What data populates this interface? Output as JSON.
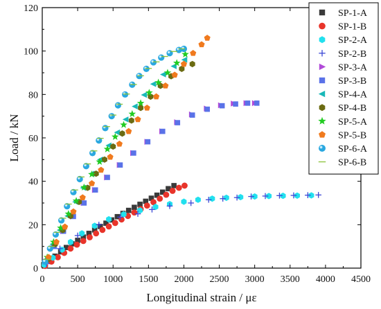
{
  "chart_data": {
    "type": "scatter",
    "title": "",
    "xlabel": "Longitudinal strain / με",
    "ylabel": "Load / kN",
    "xlim": [
      0,
      4500
    ],
    "ylim": [
      0,
      120
    ],
    "xticks": [
      0,
      500,
      1000,
      1500,
      2000,
      2500,
      3000,
      3500,
      4000,
      4500
    ],
    "yticks": [
      0,
      20,
      40,
      60,
      80,
      100,
      120
    ],
    "grid": false,
    "legend_position": "top-right",
    "series": [
      {
        "name": "SP-1-A",
        "marker": "square",
        "color": "#3a3a3a",
        "x": [
          20,
          90,
          180,
          260,
          340,
          420,
          500,
          580,
          660,
          740,
          820,
          900,
          980,
          1060,
          1140,
          1220,
          1300,
          1380,
          1460,
          1540,
          1620,
          1700,
          1780,
          1860
        ],
        "y": [
          1.5,
          3.5,
          5.5,
          7.5,
          9.5,
          11.2,
          12.8,
          14.3,
          16.0,
          17.6,
          19.2,
          20.7,
          22.2,
          23.7,
          25.2,
          26.6,
          28.0,
          29.4,
          30.8,
          32.2,
          33.6,
          35.0,
          36.6,
          38.0
        ]
      },
      {
        "name": "SP-1-B",
        "marker": "circle",
        "color": "#e8342a",
        "x": [
          40,
          130,
          220,
          310,
          400,
          490,
          580,
          670,
          760,
          850,
          940,
          1030,
          1120,
          1210,
          1300,
          1390,
          1480,
          1570,
          1660,
          1750,
          1840,
          1930,
          2010
        ],
        "y": [
          1.0,
          3.0,
          5.0,
          7.0,
          9.0,
          10.8,
          12.5,
          14.2,
          16.0,
          17.6,
          19.2,
          20.8,
          22.4,
          24.0,
          25.6,
          27.2,
          28.8,
          30.4,
          32.0,
          33.8,
          35.6,
          37.0,
          38.0
        ]
      },
      {
        "name": "SP-2-A",
        "marker": "hexagon",
        "color": "#22e0ee",
        "x": [
          30,
          150,
          280,
          400,
          560,
          740,
          940,
          1150,
          1380,
          1600,
          1800,
          2000,
          2200,
          2400,
          2600,
          2800,
          3000,
          3200,
          3400,
          3600,
          3800
        ],
        "y": [
          1.5,
          4.8,
          8.5,
          12.0,
          16.0,
          19.5,
          22.5,
          24.8,
          26.6,
          28.2,
          29.5,
          30.6,
          31.5,
          32.0,
          32.4,
          32.7,
          33.0,
          33.2,
          33.3,
          33.4,
          33.5
        ]
      },
      {
        "name": "SP-2-B",
        "marker": "plus",
        "color": "#3a46d6",
        "x": [
          60,
          250,
          500,
          800,
          1100,
          1350,
          1550,
          1800,
          2100,
          2350,
          2550,
          2750,
          2950,
          3150,
          3350,
          3550,
          3750,
          3900
        ],
        "y": [
          2.0,
          9.0,
          15.0,
          20.0,
          23.5,
          25.0,
          27.0,
          28.6,
          30.0,
          31.5,
          32.0,
          32.5,
          33.0,
          33.2,
          33.4,
          33.5,
          33.6,
          33.7
        ]
      },
      {
        "name": "SP-3-A",
        "marker": "triangle-right",
        "color": "#b14ad8",
        "x": [
          40,
          160,
          290,
          430,
          580,
          740,
          910,
          1090,
          1280,
          1480,
          1690,
          1900,
          2110,
          2320,
          2520,
          2700,
          2880,
          3000
        ],
        "y": [
          3.0,
          10.0,
          17.0,
          23.8,
          30.0,
          36.0,
          41.8,
          47.5,
          53.0,
          58.2,
          63.0,
          67.2,
          70.8,
          73.5,
          75.0,
          75.8,
          76.0,
          76.0
        ]
      },
      {
        "name": "SP-3-B",
        "marker": "square",
        "color": "#5a72e8",
        "x": [
          50,
          170,
          300,
          440,
          590,
          750,
          920,
          1100,
          1290,
          1490,
          1700,
          1910,
          2120,
          2330,
          2540,
          2730,
          2900,
          3030
        ],
        "y": [
          3.0,
          10.0,
          17.0,
          23.8,
          30.0,
          36.0,
          41.8,
          47.5,
          53.0,
          58.2,
          63.0,
          67.0,
          70.5,
          73.2,
          74.8,
          75.6,
          76.0,
          76.0
        ]
      },
      {
        "name": "SP-4-A",
        "marker": "triangle-left",
        "color": "#19b8b8",
        "x": [
          60,
          150,
          250,
          360,
          470,
          580,
          700,
          820,
          940,
          1060,
          1180,
          1310,
          1440,
          1570,
          1710,
          1860,
          2010
        ],
        "y": [
          4.0,
          11.0,
          17.5,
          24.0,
          30.5,
          37.0,
          43.5,
          50.0,
          56.5,
          62.5,
          68.5,
          74.5,
          79.8,
          84.8,
          89.2,
          93.0,
          96.0
        ]
      },
      {
        "name": "SP-4-B",
        "marker": "hexagon",
        "color": "#6b6b12",
        "x": [
          80,
          180,
          290,
          400,
          520,
          640,
          760,
          880,
          1000,
          1130,
          1260,
          1390,
          1530,
          1670,
          1820,
          1970,
          2120
        ],
        "y": [
          4.0,
          11.0,
          17.5,
          24.0,
          30.5,
          37.0,
          43.5,
          50.0,
          56.0,
          62.0,
          68.0,
          73.8,
          79.0,
          84.0,
          88.4,
          91.8,
          94.0
        ]
      },
      {
        "name": "SP-5-A",
        "marker": "star",
        "color": "#22cc22",
        "x": [
          70,
          160,
          260,
          370,
          480,
          590,
          700,
          810,
          920,
          1030,
          1150,
          1270,
          1390,
          1510,
          1640,
          1770,
          1900,
          2020
        ],
        "y": [
          5.0,
          12.0,
          18.5,
          25.0,
          31.0,
          37.2,
          43.2,
          49.0,
          54.8,
          60.5,
          66.0,
          71.0,
          76.0,
          80.8,
          85.5,
          90.0,
          94.5,
          98.5
        ]
      },
      {
        "name": "SP-5-B",
        "marker": "pentagon",
        "color": "#f07a1e",
        "x": [
          90,
          200,
          320,
          440,
          570,
          700,
          830,
          960,
          1090,
          1220,
          1350,
          1480,
          1610,
          1740,
          1870,
          2000,
          2130,
          2250,
          2330
        ],
        "y": [
          5.0,
          12.0,
          19.0,
          26.0,
          32.5,
          39.0,
          45.2,
          51.2,
          57.2,
          63.0,
          68.5,
          73.8,
          79.0,
          84.0,
          89.0,
          94.0,
          99.0,
          103.0,
          106.0
        ]
      },
      {
        "name": "SP-6-A",
        "marker": "sphere",
        "color": "#2aa8e0",
        "x": [
          40,
          110,
          190,
          270,
          350,
          440,
          530,
          620,
          710,
          800,
          890,
          980,
          1070,
          1170,
          1270,
          1370,
          1470,
          1570,
          1680,
          1800,
          1930,
          2000
        ],
        "y": [
          3.0,
          9.0,
          15.5,
          22.0,
          28.5,
          35.0,
          41.0,
          47.0,
          53.0,
          58.8,
          64.5,
          70.0,
          75.0,
          80.0,
          84.5,
          88.5,
          91.8,
          94.8,
          97.0,
          99.0,
          100.5,
          101.0
        ]
      },
      {
        "name": "SP-6-B",
        "marker": "dash",
        "color": "#8ac23a",
        "x": [
          60,
          130,
          210,
          290,
          370,
          460,
          550,
          640,
          730,
          820,
          910,
          1000,
          1090,
          1190,
          1290,
          1390,
          1500,
          1610,
          1730,
          1860,
          1970
        ],
        "y": [
          4.0,
          10.0,
          16.5,
          23.0,
          29.5,
          36.0,
          42.0,
          48.0,
          54.0,
          59.8,
          65.2,
          70.5,
          75.5,
          80.2,
          84.6,
          88.6,
          92.0,
          95.0,
          97.5,
          99.8,
          101.0
        ]
      }
    ]
  }
}
